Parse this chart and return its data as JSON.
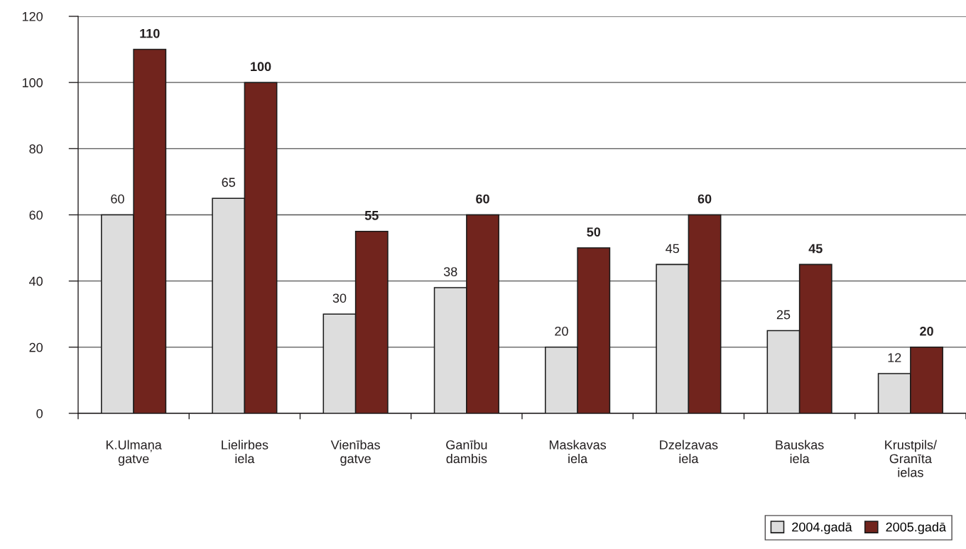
{
  "chart_data": {
    "type": "bar",
    "categories": [
      "K.Ulmaņa\ngatve",
      "Lielirbes\niela",
      "Vienības\ngatve",
      "Ganību\ndambis",
      "Maskavas\niela",
      "Dzelzavas\niela",
      "Bauskas\niela",
      "Krustpils/\nGranīta\nielas"
    ],
    "series": [
      {
        "name": "2004.gadā",
        "color": "#dddddd",
        "values": [
          60,
          65,
          30,
          38,
          20,
          45,
          25,
          12
        ]
      },
      {
        "name": "2005.gadā",
        "color": "#71241d",
        "values": [
          110,
          100,
          55,
          60,
          50,
          60,
          45,
          20
        ]
      }
    ],
    "ylim": [
      0,
      120
    ],
    "yticks": [
      0,
      20,
      40,
      60,
      80,
      100,
      120
    ],
    "grid": "y",
    "legend": "bottom right",
    "data_labels": true
  }
}
